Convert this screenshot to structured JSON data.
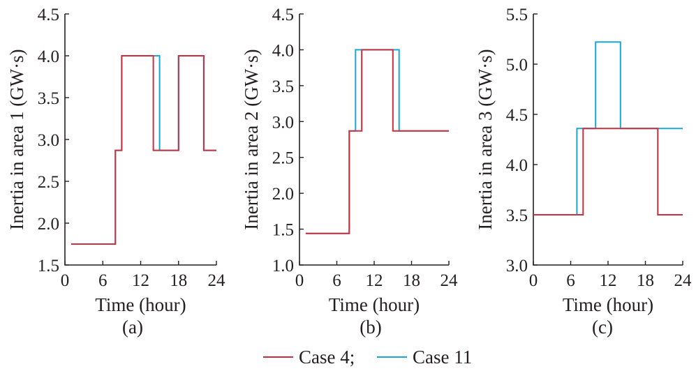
{
  "legend": {
    "items": [
      {
        "label": "Case 4;",
        "color": "#c8303f"
      },
      {
        "label": "Case 11",
        "color": "#1aa7d8"
      }
    ]
  },
  "chart_data": [
    {
      "type": "line",
      "step": true,
      "panel_label": "(a)",
      "xlabel": "Time (hour)",
      "ylabel": "Inertia in area 1 (GW·s)",
      "xlim": [
        0,
        24
      ],
      "ylim": [
        1.5,
        4.5
      ],
      "xticks": [
        0,
        6,
        12,
        18,
        24
      ],
      "xtick_labels": [
        "0",
        "6",
        "12",
        "18",
        "24"
      ],
      "yticks": [
        1.5,
        2.0,
        2.5,
        3.0,
        3.5,
        4.0,
        4.5
      ],
      "ytick_labels": [
        "1.5",
        "2.0",
        "2.5",
        "3.0",
        "3.5",
        "4.0",
        "4.5"
      ],
      "series": [
        {
          "name": "Case 4;",
          "color": "#c8303f",
          "x": [
            1,
            8,
            8,
            9,
            9,
            14,
            14,
            18,
            18,
            22,
            22,
            24
          ],
          "y": [
            1.75,
            1.75,
            2.87,
            2.87,
            4.0,
            4.0,
            2.87,
            2.87,
            4.0,
            4.0,
            2.87,
            2.87
          ]
        },
        {
          "name": "Case 11",
          "color": "#1aa7d8",
          "x": [
            1,
            8,
            8,
            9,
            9,
            15,
            15,
            18,
            18,
            22,
            22,
            24
          ],
          "y": [
            1.75,
            1.75,
            2.87,
            2.87,
            4.0,
            4.0,
            2.87,
            2.87,
            4.0,
            4.0,
            2.87,
            2.87
          ]
        }
      ]
    },
    {
      "type": "line",
      "step": true,
      "panel_label": "(b)",
      "xlabel": "Time (hour)",
      "ylabel": "Inertia in area 2 (GW·s)",
      "xlim": [
        0,
        24
      ],
      "ylim": [
        1.0,
        4.5
      ],
      "xticks": [
        0,
        6,
        12,
        18,
        24
      ],
      "xtick_labels": [
        "0",
        "6",
        "12",
        "18",
        "24"
      ],
      "yticks": [
        1.0,
        1.5,
        2.0,
        2.5,
        3.0,
        3.5,
        4.0,
        4.5
      ],
      "ytick_labels": [
        "1.0",
        "1.5",
        "2.0",
        "2.5",
        "3.0",
        "3.5",
        "4.0",
        "4.5"
      ],
      "series": [
        {
          "name": "Case 4;",
          "color": "#c8303f",
          "x": [
            1,
            8,
            8,
            10,
            10,
            15,
            15,
            24
          ],
          "y": [
            1.44,
            1.44,
            2.87,
            2.87,
            4.0,
            4.0,
            2.87,
            2.87
          ]
        },
        {
          "name": "Case 11",
          "color": "#1aa7d8",
          "x": [
            1,
            8,
            8,
            9,
            9,
            16,
            16,
            24
          ],
          "y": [
            1.44,
            1.44,
            2.87,
            2.87,
            4.0,
            4.0,
            2.87,
            2.87
          ]
        }
      ]
    },
    {
      "type": "line",
      "step": true,
      "panel_label": "(c)",
      "xlabel": "Time (hour)",
      "ylabel": "Inertia in area 3 (GW·s)",
      "xlim": [
        0,
        24
      ],
      "ylim": [
        3.0,
        5.5
      ],
      "xticks": [
        0,
        6,
        12,
        18,
        24
      ],
      "xtick_labels": [
        "0",
        "6",
        "12",
        "18",
        "24"
      ],
      "yticks": [
        3.0,
        3.5,
        4.0,
        4.5,
        5.0,
        5.5
      ],
      "ytick_labels": [
        "3.0",
        "3.5",
        "4.0",
        "4.5",
        "5.0",
        "5.5"
      ],
      "series": [
        {
          "name": "Case 4;",
          "color": "#c8303f",
          "x": [
            0,
            8,
            8,
            20,
            20,
            24
          ],
          "y": [
            3.5,
            3.5,
            4.36,
            4.36,
            3.5,
            3.5
          ]
        },
        {
          "name": "Case 11",
          "color": "#1aa7d8",
          "x": [
            0,
            7,
            7,
            10,
            10,
            14,
            14,
            24
          ],
          "y": [
            3.5,
            3.5,
            4.36,
            4.36,
            5.22,
            5.22,
            4.36,
            4.36
          ]
        }
      ]
    }
  ]
}
